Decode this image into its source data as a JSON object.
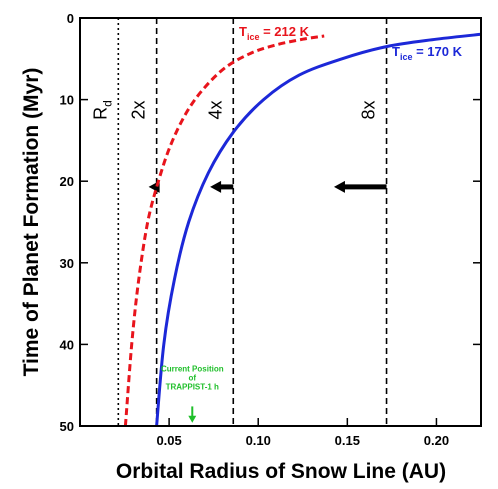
{
  "chart_data": {
    "type": "line",
    "xlabel": "Orbital Radius of Snow Line (AU)",
    "ylabel": "Time of Planet Formation (Myr)",
    "xlim": [
      0.0,
      0.225
    ],
    "ylim": [
      50,
      0
    ],
    "y_inverted": true,
    "x_ticks": [
      {
        "value": 0.05,
        "label": "0.05"
      },
      {
        "value": 0.1,
        "label": "0.10"
      },
      {
        "value": 0.15,
        "label": "0.15"
      },
      {
        "value": 0.2,
        "label": "0.20"
      }
    ],
    "y_ticks": [
      {
        "value": 0,
        "label": "0"
      },
      {
        "value": 10,
        "label": "10"
      },
      {
        "value": 20,
        "label": "20"
      },
      {
        "value": 30,
        "label": "30"
      },
      {
        "value": 40,
        "label": "40"
      },
      {
        "value": 50,
        "label": "50"
      }
    ],
    "grid": false,
    "series": [
      {
        "name": "T_ice = 212 K",
        "label_main": "T",
        "label_sub": "ice",
        "label_rest": " = 212 K",
        "color": "#e8141c",
        "style": "dashed",
        "x": [
          0.0255,
          0.029,
          0.033,
          0.038,
          0.044,
          0.051,
          0.06,
          0.07,
          0.082,
          0.096,
          0.11,
          0.125,
          0.137
        ],
        "y": [
          50,
          40,
          32,
          25,
          20,
          15.5,
          11.5,
          8.5,
          6.0,
          4.3,
          3.3,
          2.6,
          2.2
        ]
      },
      {
        "name": "T_ice = 170 K",
        "label_main": "T",
        "label_sub": "ice",
        "label_rest": " = 170 K",
        "color": "#1c28d8",
        "style": "solid",
        "x": [
          0.043,
          0.047,
          0.053,
          0.061,
          0.072,
          0.086,
          0.103,
          0.123,
          0.147,
          0.172,
          0.2,
          0.225
        ],
        "y": [
          50,
          40,
          32,
          25,
          19,
          14,
          10,
          7,
          5,
          3.5,
          2.6,
          2.0
        ]
      }
    ],
    "vlines": [
      {
        "x": 0.0215,
        "label_main": "R",
        "label_sub": "d",
        "style": "dotted",
        "arrow_length": 0
      },
      {
        "x": 0.043,
        "label_main": "2x",
        "label_sub": "",
        "style": "dashed",
        "arrow_length": 0.0045
      },
      {
        "x": 0.086,
        "label_main": "4x",
        "label_sub": "",
        "style": "dashed",
        "arrow_length": 0.013
      },
      {
        "x": 0.172,
        "label_main": "8x",
        "label_sub": "",
        "style": "dashed",
        "arrow_length": 0.0295
      }
    ],
    "arrow_y": 20.7,
    "annotation": {
      "lines": [
        "Current Position",
        "of",
        "TRAPPIST-1 h"
      ],
      "x": 0.063,
      "y_text": 45.5,
      "arrow_from_y": 47.6,
      "arrow_to_y": 49.6,
      "color": "#1fbf2a"
    }
  }
}
